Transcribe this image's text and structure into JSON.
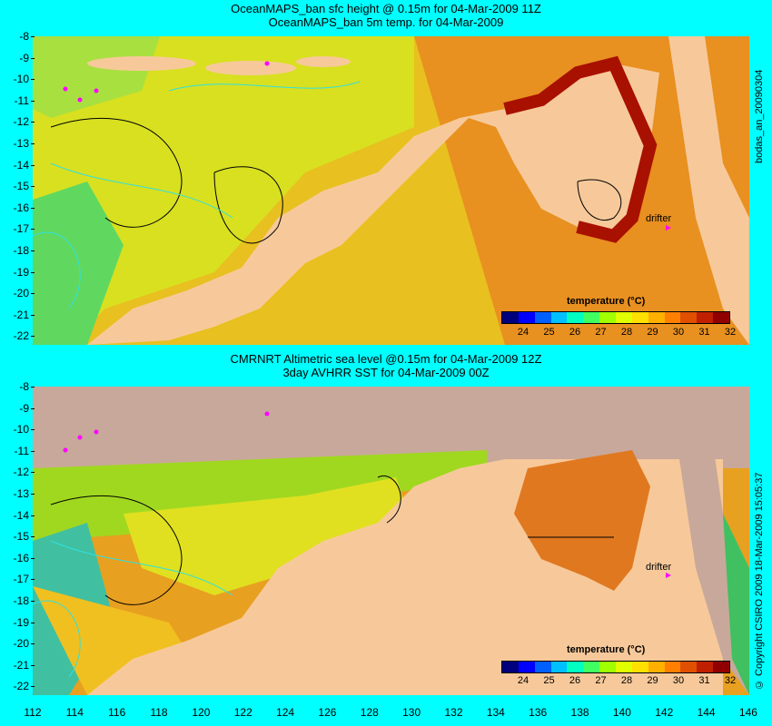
{
  "top_panel": {
    "title_line1": "OceanMAPS_ban sfc height @ 0.15m for 04-Mar-2009 11Z",
    "title_line2": "OceanMAPS_ban 5m temp. for 04-Mar-2009",
    "side_label": "bodas_an_20090304",
    "drifter_label": "drifter",
    "colorbar_title": "temperature (°C)"
  },
  "bottom_panel": {
    "title_line1": "CMRNRT Altimetric sea level  @0.15m  for 04-Mar-2009 12Z",
    "title_line2": "3day AVHRR SST for 04-Mar-2009 00Z",
    "side_label": "© Copyright CSIRO 2009   18-Mar-2009 15:05:37",
    "drifter_label": "drifter",
    "colorbar_title": "temperature (°C)"
  },
  "y_ticks": [
    "-8",
    "-9",
    "-10",
    "-11",
    "-12",
    "-13",
    "-14",
    "-15",
    "-16",
    "-17",
    "-18",
    "-19",
    "-20",
    "-21",
    "-22"
  ],
  "x_ticks": [
    "112",
    "114",
    "116",
    "118",
    "120",
    "122",
    "124",
    "126",
    "128",
    "130",
    "132",
    "134",
    "136",
    "138",
    "140",
    "142",
    "144",
    "146"
  ],
  "colorbar": {
    "labels": [
      "24",
      "25",
      "26",
      "27",
      "28",
      "29",
      "30",
      "31",
      "32"
    ],
    "colors": [
      "#00007f",
      "#0000ff",
      "#0060ff",
      "#00c0ff",
      "#00ffc0",
      "#40ff60",
      "#a0ff00",
      "#e0ff00",
      "#ffe000",
      "#ffb000",
      "#ff8000",
      "#e05000",
      "#c02000",
      "#900000"
    ]
  },
  "colors": {
    "background": "#00ffff",
    "land": "#f7c99a",
    "no_data": "#c8a89a",
    "drifter": "#ff00ff",
    "contour_cyan": "#30e0e0"
  }
}
